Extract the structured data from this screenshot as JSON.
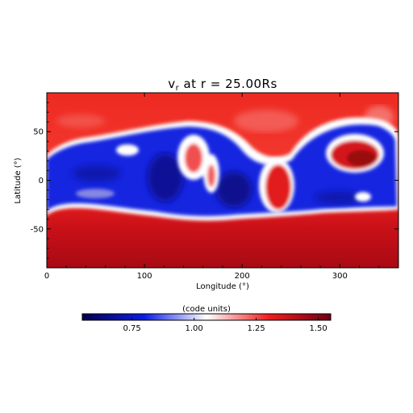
{
  "chart_data": {
    "type": "heatmap",
    "title": {
      "symbol": "v",
      "subscript": "r",
      "rest": " at r = 25.00Rs"
    },
    "xlabel": "Longitude (°)",
    "ylabel": "Latitude (°)",
    "xlim": [
      0,
      360
    ],
    "ylim": [
      -90,
      90
    ],
    "x_ticks": [
      0,
      100,
      200,
      300
    ],
    "y_ticks": [
      -50,
      0,
      50
    ],
    "colorbar": {
      "label": "(code units)",
      "range": [
        0.55,
        1.55
      ],
      "ticks": [
        "0.75",
        "1.00",
        "1.25",
        "1.50"
      ],
      "tick_values": [
        0.75,
        1.0,
        1.25,
        1.5
      ],
      "colormap": [
        "#08004a",
        "#0b1ee6",
        "#ffffff",
        "#f01e1e",
        "#6e0014"
      ]
    },
    "features": [
      {
        "description": "fast red background, darker toward south pole",
        "value": 1.4
      },
      {
        "description": "slow blue band crossing equator from lon 0 to 360",
        "value": 0.7
      }
    ]
  }
}
